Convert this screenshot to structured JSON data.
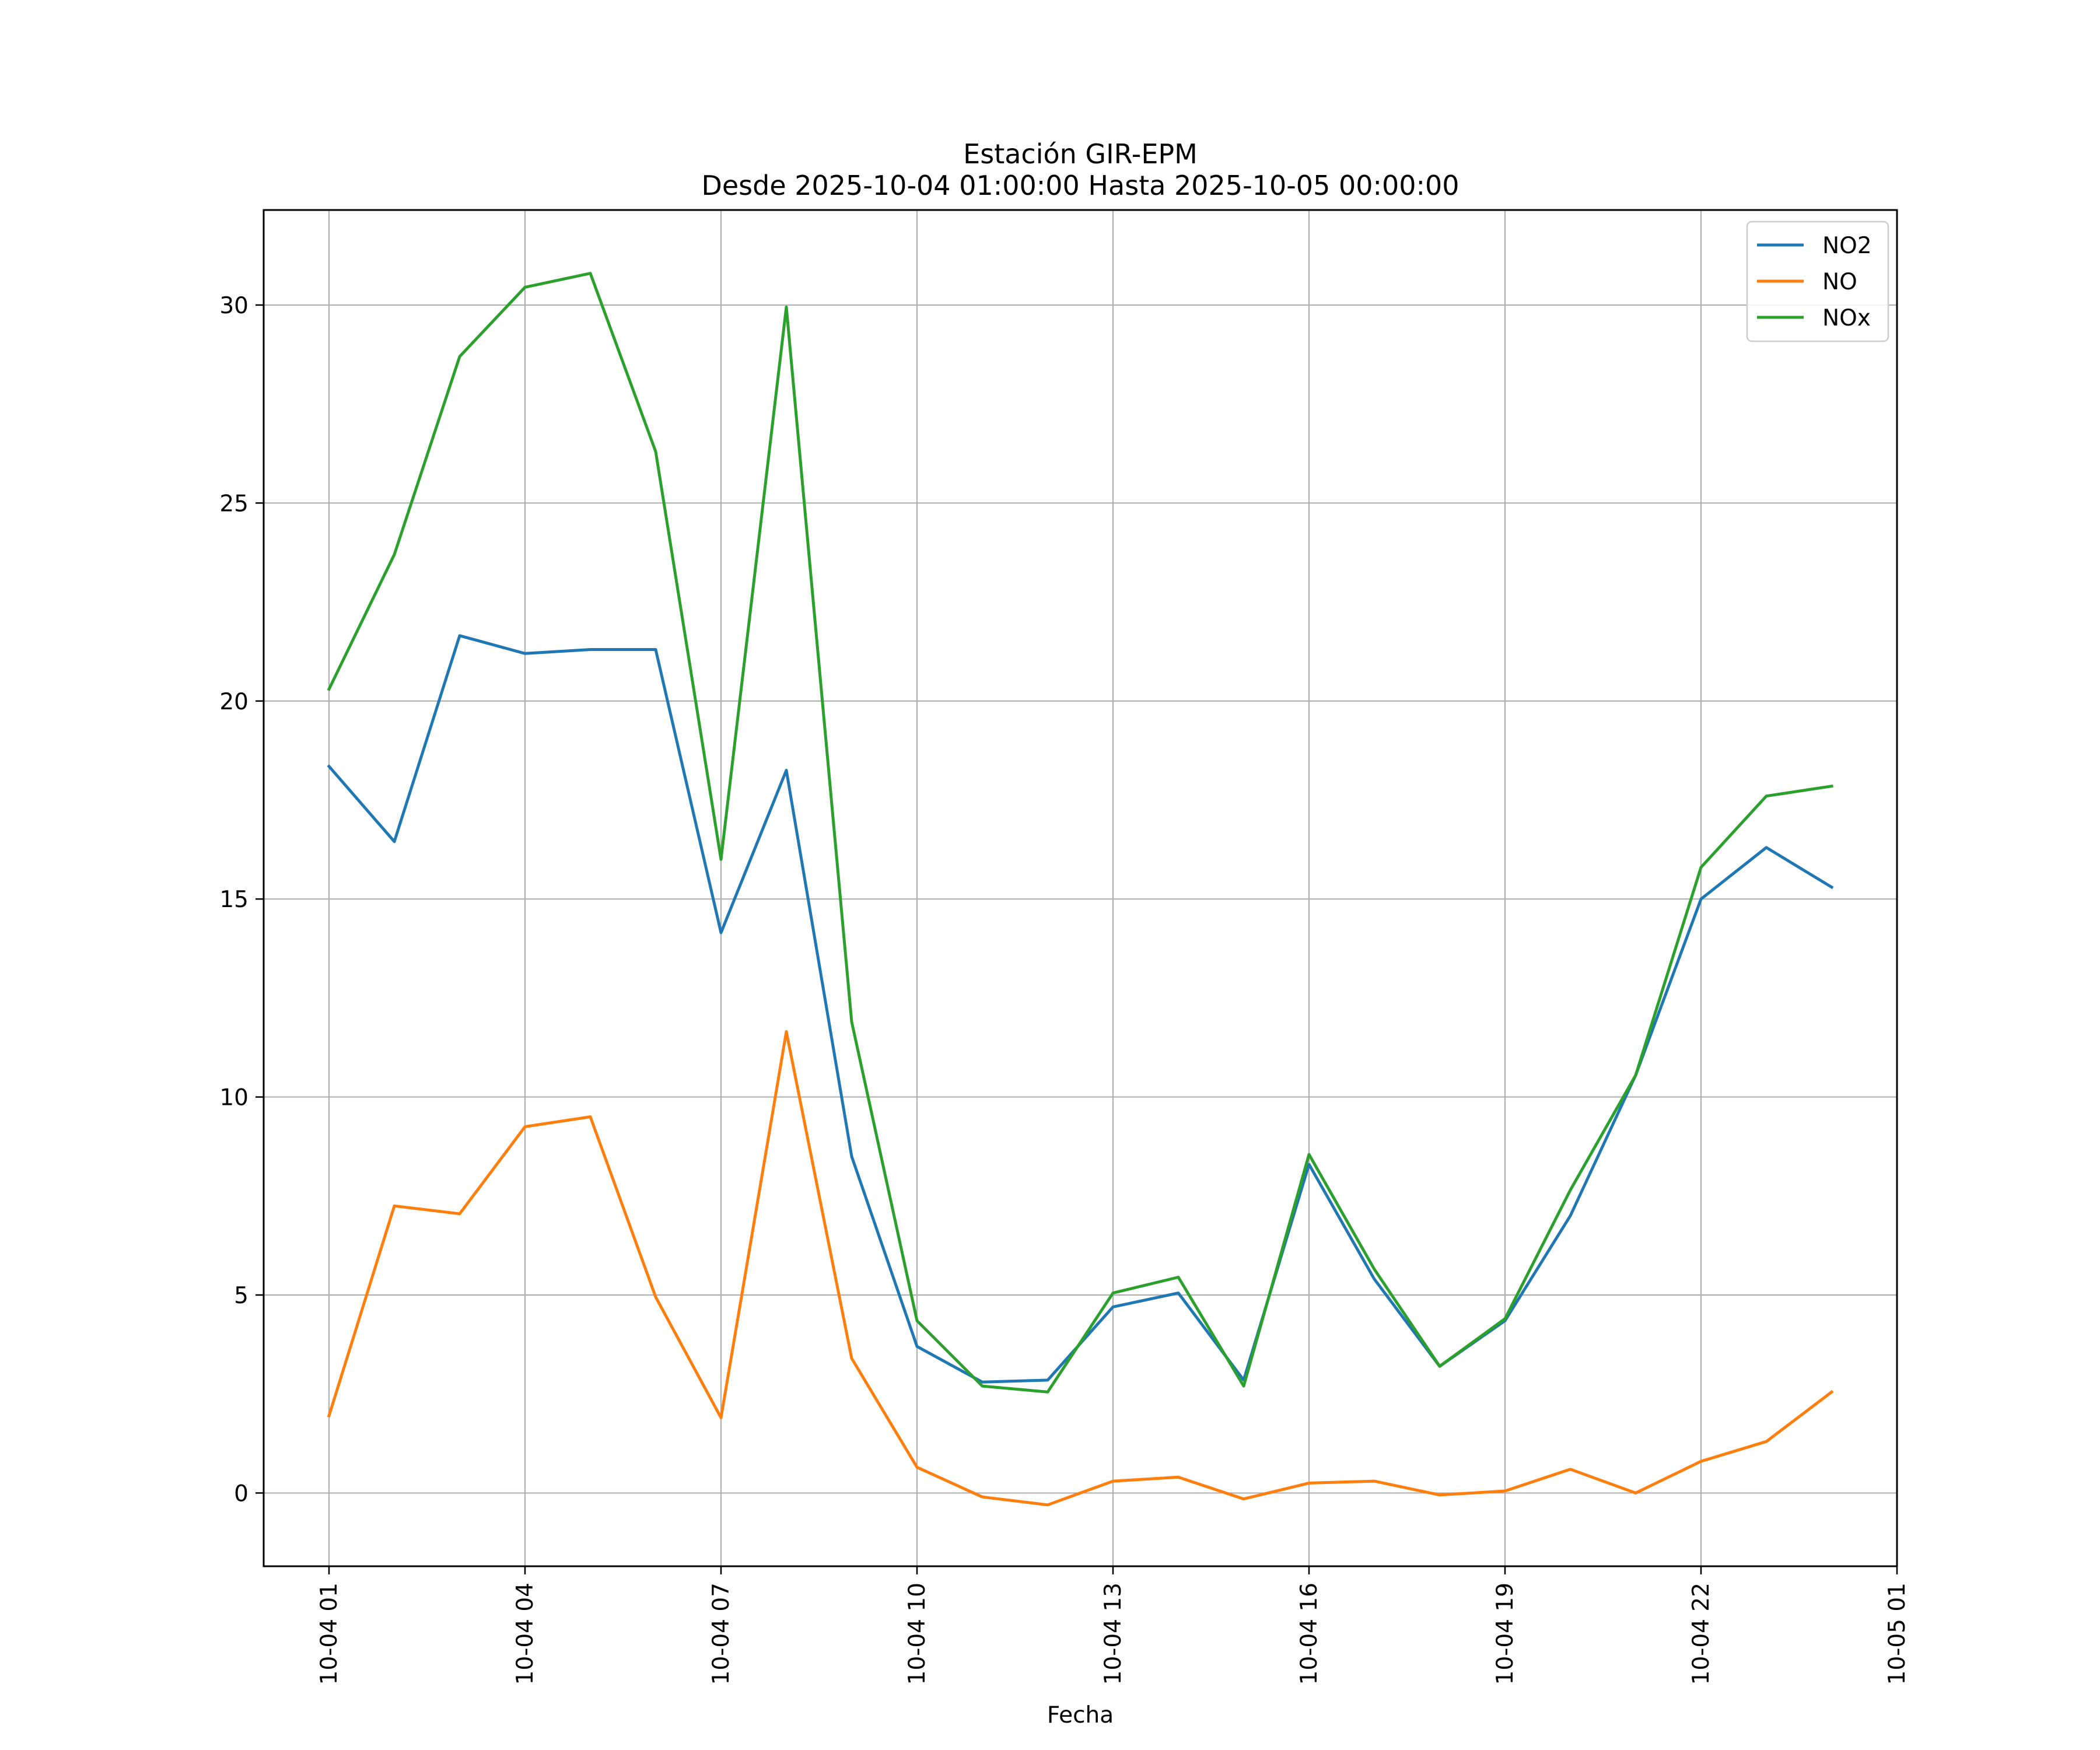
{
  "chart_data": {
    "type": "line",
    "title": "Estación GIR-EPM",
    "subtitle": "Desde 2025-10-04 01:00:00 Hasta 2025-10-05 00:00:00",
    "xlabel": "Fecha",
    "ylabel": "",
    "x": [
      "2025-10-04 01:00",
      "2025-10-04 02:00",
      "2025-10-04 03:00",
      "2025-10-04 04:00",
      "2025-10-04 05:00",
      "2025-10-04 06:00",
      "2025-10-04 07:00",
      "2025-10-04 08:00",
      "2025-10-04 09:00",
      "2025-10-04 10:00",
      "2025-10-04 11:00",
      "2025-10-04 12:00",
      "2025-10-04 13:00",
      "2025-10-04 14:00",
      "2025-10-04 15:00",
      "2025-10-04 16:00",
      "2025-10-04 17:00",
      "2025-10-04 18:00",
      "2025-10-04 19:00",
      "2025-10-04 20:00",
      "2025-10-04 21:00",
      "2025-10-04 22:00",
      "2025-10-04 23:00",
      "2025-10-05 00:00"
    ],
    "xlim": [
      "2025-10-04 00:00",
      "2025-10-05 01:00"
    ],
    "x_ticks": [
      "2025-10-04 01:00",
      "2025-10-04 04:00",
      "2025-10-04 07:00",
      "2025-10-04 10:00",
      "2025-10-04 13:00",
      "2025-10-04 16:00",
      "2025-10-04 19:00",
      "2025-10-04 22:00",
      "2025-10-05 01:00"
    ],
    "x_tick_labels": [
      "10-04 01",
      "10-04 04",
      "10-04 07",
      "10-04 10",
      "10-04 13",
      "10-04 16",
      "10-04 19",
      "10-04 22",
      "10-05 01"
    ],
    "ylim": [
      -1.85,
      32.4
    ],
    "y_ticks": [
      0,
      5,
      10,
      15,
      20,
      25,
      30
    ],
    "y_tick_labels": [
      "0",
      "5",
      "10",
      "15",
      "20",
      "25",
      "30"
    ],
    "grid": true,
    "legend_position": "top-right",
    "series": [
      {
        "name": "NO2",
        "color": "#1f77b4",
        "values": [
          18.35,
          16.45,
          21.65,
          21.2,
          21.3,
          21.3,
          14.15,
          18.25,
          8.5,
          3.7,
          2.8,
          2.85,
          4.7,
          5.05,
          2.85,
          8.3,
          5.4,
          3.2,
          4.35,
          7.0,
          10.55,
          15.0,
          16.3,
          15.3
        ]
      },
      {
        "name": "NO",
        "color": "#ff7f0e",
        "values": [
          1.95,
          7.25,
          7.05,
          9.25,
          9.5,
          4.95,
          1.9,
          11.65,
          3.4,
          0.65,
          -0.1,
          -0.3,
          0.3,
          0.4,
          -0.15,
          0.25,
          0.3,
          -0.05,
          0.05,
          0.6,
          0.0,
          0.8,
          1.3,
          2.55
        ]
      },
      {
        "name": "NOx",
        "color": "#2ca02c",
        "values": [
          20.3,
          23.7,
          28.7,
          30.45,
          30.8,
          26.3,
          16.0,
          29.95,
          11.9,
          4.35,
          2.7,
          2.55,
          5.05,
          5.45,
          2.7,
          8.55,
          5.65,
          3.2,
          4.4,
          7.65,
          10.55,
          15.8,
          17.6,
          17.85
        ]
      }
    ]
  }
}
